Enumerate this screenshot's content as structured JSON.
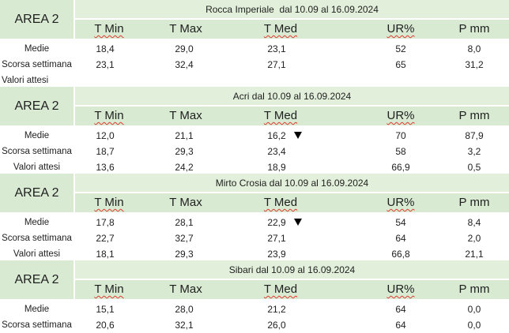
{
  "columns": [
    "T Min",
    "T Max",
    "T Med",
    "UR%",
    "P mm"
  ],
  "row_labels": [
    "Medie",
    "Scorsa settimana",
    "Valori attesi"
  ],
  "blocks": [
    {
      "area": "AREA 2",
      "station": "Rocca Imperiale  dal 10.09 al 16.09.2024",
      "medie": [
        "18,4",
        "29,0",
        "23,1",
        "52",
        "8,0"
      ],
      "scorsa": [
        "23,1",
        "32,4",
        "27,1",
        "65",
        "31,2"
      ],
      "attesi": [
        "",
        "",
        "",
        "",
        ""
      ]
    },
    {
      "area": "AREA 2",
      "station": "Acri dal 10.09 al 16.09.2024",
      "medie": [
        "12,0",
        "21,1",
        "16,2",
        "70",
        "87,9"
      ],
      "scorsa": [
        "18,7",
        "29,3",
        "23,4",
        "58",
        "3,2"
      ],
      "attesi": [
        "13,6",
        "24,2",
        "18,9",
        "66,9",
        "0,5"
      ],
      "tmed_trend": "down-arrow"
    },
    {
      "area": "AREA 2",
      "station": "Mirto Crosia dal 10.09 al 16.09.2024",
      "medie": [
        "17,8",
        "28,1",
        "22,9",
        "54",
        "8,4"
      ],
      "scorsa": [
        "22,7",
        "32,7",
        "27,1",
        "64",
        "2,0"
      ],
      "attesi": [
        "18,1",
        "29,3",
        "23,9",
        "66,8",
        "21,1"
      ],
      "tmed_trend": "down-arrow"
    },
    {
      "area": "AREA 2",
      "station": "Sibari dal 10.09 al 16.09.2024",
      "medie": [
        "15,1",
        "28,0",
        "21,2",
        "64",
        "0,0"
      ],
      "scorsa": [
        "20,6",
        "32,1",
        "26,0",
        "64",
        "0,0"
      ]
    }
  ],
  "colors": {
    "header_fill": "#d9ead3",
    "station_fill": "#e2efda",
    "spell_underline": "#e03a2f",
    "trend_arrow": "#000000"
  }
}
